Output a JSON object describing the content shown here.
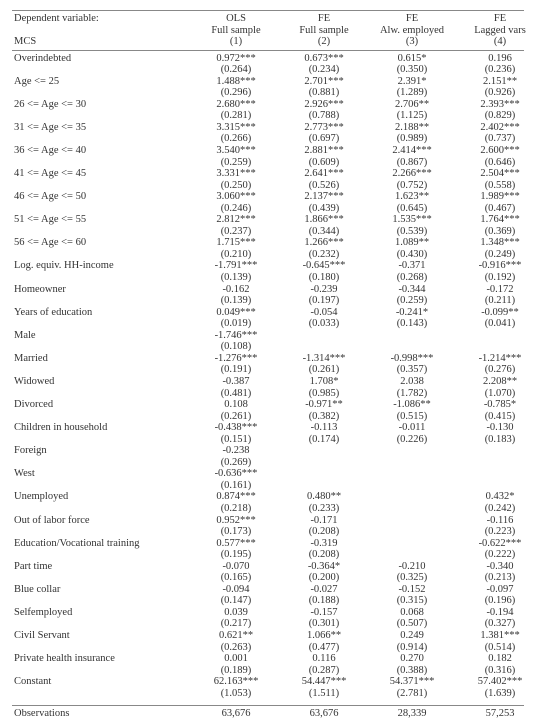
{
  "header": {
    "dep_label": "Dependent variable:",
    "mcs_label": "MCS",
    "cols": [
      {
        "l1": "OLS",
        "l2": "Full sample",
        "l3": "(1)"
      },
      {
        "l1": "FE",
        "l2": "Full sample",
        "l3": "(2)"
      },
      {
        "l1": "FE",
        "l2": "Alw. employed",
        "l3": "(3)"
      },
      {
        "l1": "FE",
        "l2": "Lagged vars",
        "l3": "(4)"
      }
    ]
  },
  "rows": [
    {
      "label": "Overindebted",
      "c": [
        "0.972***",
        "0.673***",
        "0.615*",
        "0.196"
      ],
      "se": [
        "(0.264)",
        "(0.234)",
        "(0.350)",
        "(0.236)"
      ]
    },
    {
      "label": "Age <= 25",
      "c": [
        "1.488***",
        "2.701***",
        "2.391*",
        "2.151**"
      ],
      "se": [
        "(0.296)",
        "(0.881)",
        "(1.289)",
        "(0.926)"
      ]
    },
    {
      "label": "26 <= Age <= 30",
      "c": [
        "2.680***",
        "2.926***",
        "2.706**",
        "2.393***"
      ],
      "se": [
        "(0.281)",
        "(0.788)",
        "(1.125)",
        "(0.829)"
      ]
    },
    {
      "label": "31 <= Age <= 35",
      "c": [
        "3.315***",
        "2.773***",
        "2.188**",
        "2.402***"
      ],
      "se": [
        "(0.266)",
        "(0.697)",
        "(0.989)",
        "(0.737)"
      ]
    },
    {
      "label": "36 <= Age <= 40",
      "c": [
        "3.540***",
        "2.881***",
        "2.414***",
        "2.600***"
      ],
      "se": [
        "(0.259)",
        "(0.609)",
        "(0.867)",
        "(0.646)"
      ]
    },
    {
      "label": "41 <= Age <= 45",
      "c": [
        "3.331***",
        "2.641***",
        "2.266***",
        "2.504***"
      ],
      "se": [
        "(0.250)",
        "(0.526)",
        "(0.752)",
        "(0.558)"
      ]
    },
    {
      "label": "46 <= Age <= 50",
      "c": [
        "3.060***",
        "2.137***",
        "1.623**",
        "1.989***"
      ],
      "se": [
        "(0.246)",
        "(0.439)",
        "(0.645)",
        "(0.467)"
      ]
    },
    {
      "label": "51 <= Age <= 55",
      "c": [
        "2.812***",
        "1.866***",
        "1.535***",
        "1.764***"
      ],
      "se": [
        "(0.237)",
        "(0.344)",
        "(0.539)",
        "(0.369)"
      ]
    },
    {
      "label": "56 <= Age <= 60",
      "c": [
        "1.715***",
        "1.266***",
        "1.089**",
        "1.348***"
      ],
      "se": [
        "(0.210)",
        "(0.232)",
        "(0.430)",
        "(0.249)"
      ]
    },
    {
      "label": "Log. equiv. HH-income",
      "c": [
        "-1.791***",
        "-0.645***",
        "-0.371",
        "-0.916***"
      ],
      "se": [
        "(0.139)",
        "(0.180)",
        "(0.268)",
        "(0.192)"
      ]
    },
    {
      "label": "Homeowner",
      "c": [
        "-0.162",
        "-0.239",
        "-0.344",
        "-0.172"
      ],
      "se": [
        "(0.139)",
        "(0.197)",
        "(0.259)",
        "(0.211)"
      ]
    },
    {
      "label": "Years of education",
      "c": [
        "0.049***",
        "-0.054",
        "-0.241*",
        "-0.099**"
      ],
      "se": [
        "(0.019)",
        "(0.033)",
        "(0.143)",
        "(0.041)"
      ]
    },
    {
      "label": "Male",
      "c": [
        "-1.746***",
        "",
        "",
        ""
      ],
      "se": [
        "(0.108)",
        "",
        "",
        ""
      ]
    },
    {
      "label": "Married",
      "c": [
        "-1.276***",
        "-1.314***",
        "-0.998***",
        "-1.214***"
      ],
      "se": [
        "(0.191)",
        "(0.261)",
        "(0.357)",
        "(0.276)"
      ]
    },
    {
      "label": "Widowed",
      "c": [
        "-0.387",
        "1.708*",
        "2.038",
        "2.208**"
      ],
      "se": [
        "(0.481)",
        "(0.985)",
        "(1.782)",
        "(1.070)"
      ]
    },
    {
      "label": "Divorced",
      "c": [
        "0.108",
        "-0.971**",
        "-1.086**",
        "-0.785*"
      ],
      "se": [
        "(0.261)",
        "(0.382)",
        "(0.515)",
        "(0.415)"
      ]
    },
    {
      "label": "Children in household",
      "c": [
        "-0.438***",
        "-0.113",
        "-0.011",
        "-0.130"
      ],
      "se": [
        "(0.151)",
        "(0.174)",
        "(0.226)",
        "(0.183)"
      ]
    },
    {
      "label": "Foreign",
      "c": [
        "-0.238",
        "",
        "",
        ""
      ],
      "se": [
        "(0.269)",
        "",
        "",
        ""
      ]
    },
    {
      "label": "West",
      "c": [
        "-0.636***",
        "",
        "",
        ""
      ],
      "se": [
        "(0.161)",
        "",
        "",
        ""
      ]
    },
    {
      "label": "Unemployed",
      "c": [
        "0.874***",
        "0.480**",
        "",
        "0.432*"
      ],
      "se": [
        "(0.218)",
        "(0.233)",
        "",
        "(0.242)"
      ]
    },
    {
      "label": "Out of labor force",
      "c": [
        "0.952***",
        "-0.171",
        "",
        "-0.116"
      ],
      "se": [
        "(0.173)",
        "(0.208)",
        "",
        "(0.223)"
      ]
    },
    {
      "label": "Education/Vocational training",
      "c": [
        "0.577***",
        "-0.319",
        "",
        "-0.622***"
      ],
      "se": [
        "(0.195)",
        "(0.208)",
        "",
        "(0.222)"
      ]
    },
    {
      "label": "Part time",
      "c": [
        "-0.070",
        "-0.364*",
        "-0.210",
        "-0.340"
      ],
      "se": [
        "(0.165)",
        "(0.200)",
        "(0.325)",
        "(0.213)"
      ]
    },
    {
      "label": "Blue collar",
      "c": [
        "-0.094",
        "-0.027",
        "-0.152",
        "-0.097"
      ],
      "se": [
        "(0.147)",
        "(0.188)",
        "(0.315)",
        "(0.196)"
      ]
    },
    {
      "label": "Selfemployed",
      "c": [
        "0.039",
        "-0.157",
        "0.068",
        "-0.194"
      ],
      "se": [
        "(0.217)",
        "(0.301)",
        "(0.507)",
        "(0.327)"
      ]
    },
    {
      "label": "Civil Servant",
      "c": [
        "0.621**",
        "1.066**",
        "0.249",
        "1.381***"
      ],
      "se": [
        "(0.263)",
        "(0.477)",
        "(0.914)",
        "(0.514)"
      ]
    },
    {
      "label": "Private health insurance",
      "c": [
        "0.001",
        "0.116",
        "0.270",
        "0.182"
      ],
      "se": [
        "(0.189)",
        "(0.287)",
        "(0.388)",
        "(0.316)"
      ]
    },
    {
      "label": "Constant",
      "c": [
        "62.163***",
        "54.447***",
        "54.371***",
        "57.402***"
      ],
      "se": [
        "(1.053)",
        "(1.511)",
        "(2.781)",
        "(1.639)"
      ]
    }
  ],
  "footer": {
    "label": "Observations",
    "vals": [
      "63,676",
      "63,676",
      "28,339",
      "57,253"
    ]
  }
}
